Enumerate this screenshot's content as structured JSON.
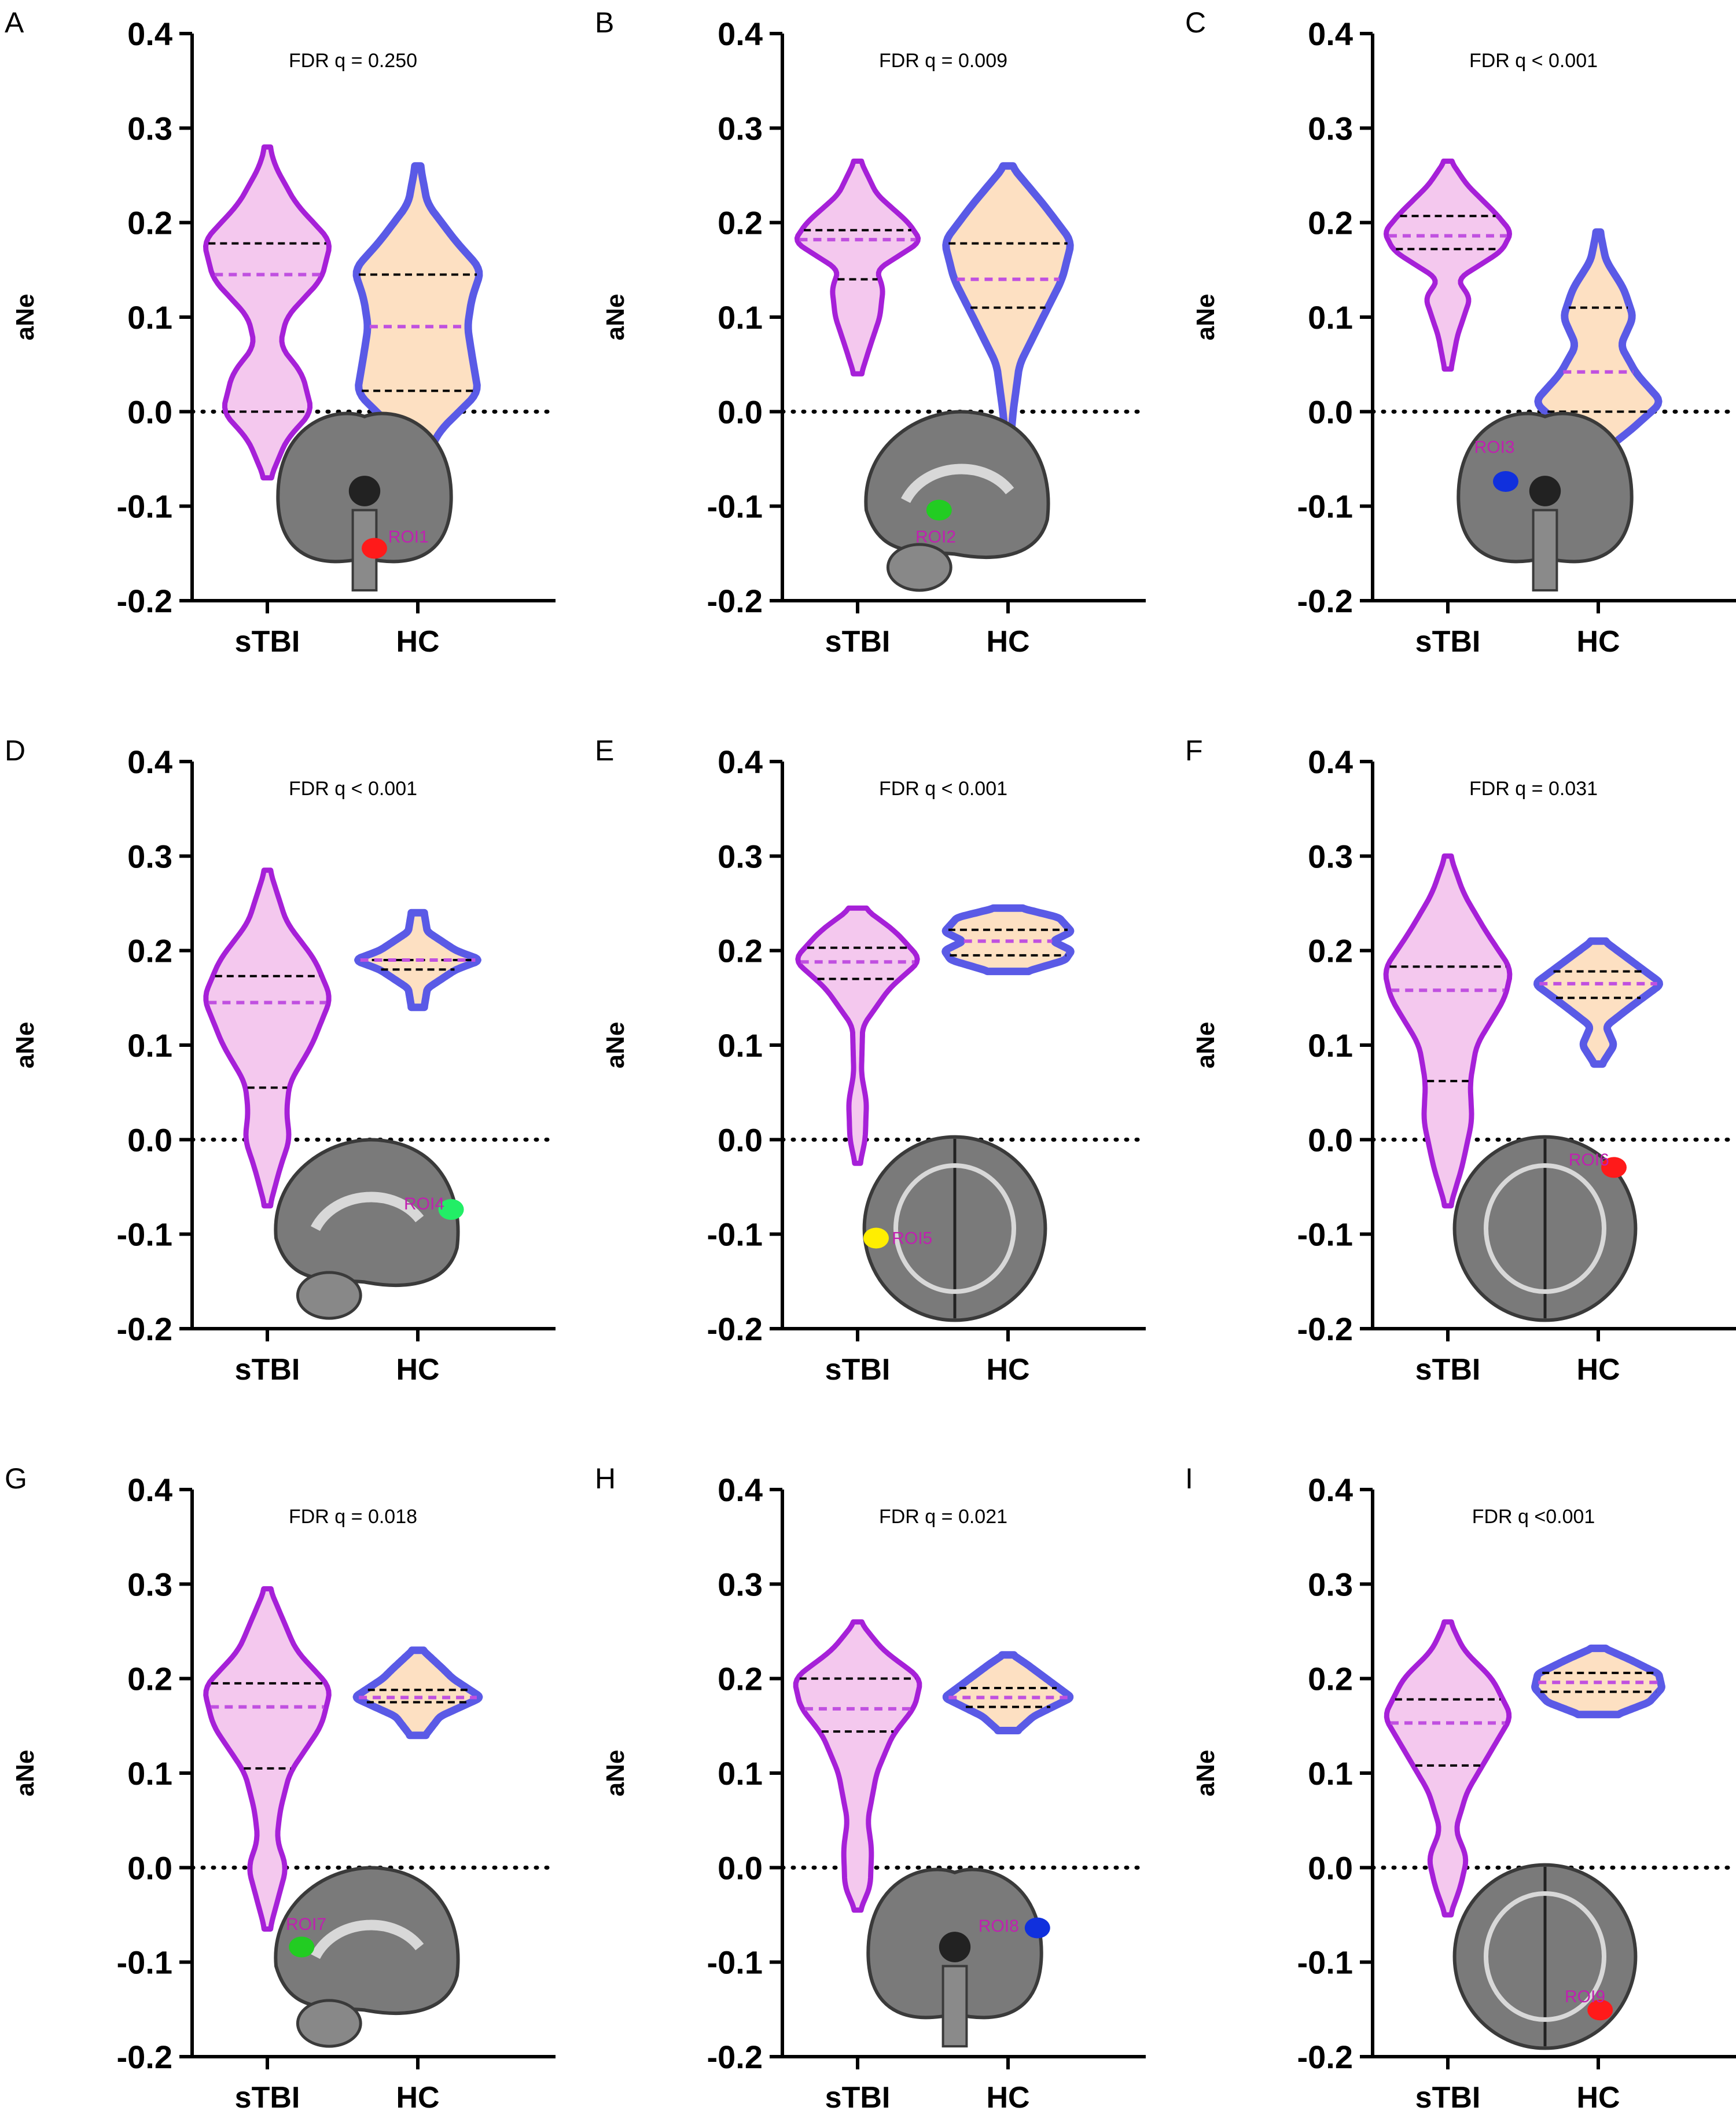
{
  "figure": {
    "y_axis_label": "aNe",
    "categories": [
      "sTBI",
      "HC"
    ]
  },
  "colors": {
    "stbi_outline": "#a620d8",
    "stbi_fill": "#f4c8ee",
    "hc_outline": "#5a5ae6",
    "hc_fill": "#fde0c2",
    "median_stbi": "#c050e0",
    "median_hc": "#c050e0",
    "quartile": "#000000",
    "roi_label": "#c020b0"
  },
  "chart_data": [
    {
      "panel": "A",
      "type": "violin",
      "fdr": "FDR q = 0.250",
      "ylabel": "aNe",
      "ylim": [
        -0.2,
        0.4
      ],
      "yticks": [
        "0.4",
        "0.3",
        "0.2",
        "0.1",
        "0.0",
        "-0.1",
        "-0.2"
      ],
      "reference_line": 0.0,
      "categories": [
        "sTBI",
        "HC"
      ],
      "series": [
        {
          "name": "sTBI",
          "min": -0.07,
          "max": 0.28,
          "q1": 0.0,
          "median": 0.145,
          "q3": 0.178,
          "density": [
            [
              -0.07,
              0.05
            ],
            [
              -0.03,
              0.3
            ],
            [
              0.0,
              0.7
            ],
            [
              0.04,
              0.55
            ],
            [
              0.07,
              0.2
            ],
            [
              0.1,
              0.3
            ],
            [
              0.14,
              0.85
            ],
            [
              0.18,
              1.0
            ],
            [
              0.22,
              0.45
            ],
            [
              0.26,
              0.12
            ],
            [
              0.28,
              0.04
            ]
          ]
        },
        {
          "name": "HC",
          "min": -0.06,
          "max": 0.26,
          "q1": 0.022,
          "median": 0.09,
          "q3": 0.145,
          "density": [
            [
              -0.06,
              0.04
            ],
            [
              -0.02,
              0.35
            ],
            [
              0.02,
              0.95
            ],
            [
              0.06,
              0.85
            ],
            [
              0.09,
              0.78
            ],
            [
              0.12,
              0.85
            ],
            [
              0.15,
              1.0
            ],
            [
              0.18,
              0.6
            ],
            [
              0.22,
              0.15
            ],
            [
              0.26,
              0.04
            ]
          ]
        }
      ],
      "brain": {
        "view": "coronal-cerebellum",
        "roi": "ROI1",
        "roi_color": "#ff1a1a"
      }
    },
    {
      "panel": "B",
      "type": "violin",
      "fdr": "FDR q = 0.009",
      "ylabel": "aNe",
      "ylim": [
        -0.2,
        0.4
      ],
      "yticks": [
        "0.4",
        "0.3",
        "0.2",
        "0.1",
        "0.0",
        "-0.1",
        "-0.2"
      ],
      "reference_line": 0.0,
      "categories": [
        "sTBI",
        "HC"
      ],
      "series": [
        {
          "name": "sTBI",
          "min": 0.04,
          "max": 0.265,
          "q1": 0.14,
          "median": 0.182,
          "q3": 0.192,
          "density": [
            [
              0.04,
              0.06
            ],
            [
              0.07,
              0.2
            ],
            [
              0.1,
              0.35
            ],
            [
              0.13,
              0.4
            ],
            [
              0.15,
              0.3
            ],
            [
              0.18,
              1.0
            ],
            [
              0.2,
              0.8
            ],
            [
              0.23,
              0.3
            ],
            [
              0.265,
              0.05
            ]
          ]
        },
        {
          "name": "HC",
          "min": -0.045,
          "max": 0.26,
          "q1": 0.11,
          "median": 0.14,
          "q3": 0.178,
          "density": [
            [
              -0.045,
              0.02
            ],
            [
              0.0,
              0.08
            ],
            [
              0.05,
              0.18
            ],
            [
              0.1,
              0.55
            ],
            [
              0.14,
              0.85
            ],
            [
              0.18,
              1.0
            ],
            [
              0.22,
              0.55
            ],
            [
              0.26,
              0.05
            ]
          ]
        }
      ],
      "brain": {
        "view": "sagittal",
        "roi": "ROI2",
        "roi_color": "#22cc22"
      }
    },
    {
      "panel": "C",
      "type": "violin",
      "fdr": "FDR q < 0.001",
      "ylabel": "aNe",
      "ylim": [
        -0.2,
        0.4
      ],
      "yticks": [
        "0.4",
        "0.3",
        "0.2",
        "0.1",
        "0.0",
        "-0.1",
        "-0.2"
      ],
      "reference_line": 0.0,
      "categories": [
        "sTBI",
        "HC"
      ],
      "series": [
        {
          "name": "sTBI",
          "min": 0.045,
          "max": 0.265,
          "q1": 0.172,
          "median": 0.186,
          "q3": 0.207,
          "density": [
            [
              0.045,
              0.05
            ],
            [
              0.08,
              0.15
            ],
            [
              0.12,
              0.35
            ],
            [
              0.14,
              0.15
            ],
            [
              0.17,
              0.85
            ],
            [
              0.19,
              1.0
            ],
            [
              0.21,
              0.75
            ],
            [
              0.24,
              0.3
            ],
            [
              0.265,
              0.05
            ]
          ]
        },
        {
          "name": "HC",
          "min": -0.045,
          "max": 0.19,
          "q1": 0.0,
          "median": 0.042,
          "q3": 0.11,
          "density": [
            [
              -0.045,
              0.03
            ],
            [
              -0.02,
              0.5
            ],
            [
              0.01,
              1.0
            ],
            [
              0.04,
              0.6
            ],
            [
              0.07,
              0.35
            ],
            [
              0.1,
              0.55
            ],
            [
              0.13,
              0.4
            ],
            [
              0.16,
              0.12
            ],
            [
              0.19,
              0.03
            ]
          ]
        }
      ],
      "brain": {
        "view": "coronal",
        "roi": "ROI3",
        "roi_color": "#1030dd"
      }
    },
    {
      "panel": "D",
      "type": "violin",
      "fdr": "FDR q < 0.001",
      "ylabel": "aNe",
      "ylim": [
        -0.2,
        0.4
      ],
      "yticks": [
        "0.4",
        "0.3",
        "0.2",
        "0.1",
        "0.0",
        "-0.1",
        "-0.2"
      ],
      "reference_line": 0.0,
      "categories": [
        "sTBI",
        "HC"
      ],
      "series": [
        {
          "name": "sTBI",
          "min": -0.07,
          "max": 0.285,
          "q1": 0.055,
          "median": 0.145,
          "q3": 0.173,
          "density": [
            [
              -0.07,
              0.04
            ],
            [
              -0.03,
              0.2
            ],
            [
              0.0,
              0.35
            ],
            [
              0.03,
              0.3
            ],
            [
              0.06,
              0.35
            ],
            [
              0.1,
              0.7
            ],
            [
              0.15,
              1.0
            ],
            [
              0.19,
              0.75
            ],
            [
              0.23,
              0.3
            ],
            [
              0.285,
              0.04
            ]
          ]
        },
        {
          "name": "HC",
          "min": 0.14,
          "max": 0.24,
          "q1": 0.18,
          "median": 0.19,
          "q3": 0.19,
          "density": [
            [
              0.14,
              0.1
            ],
            [
              0.16,
              0.15
            ],
            [
              0.18,
              0.6
            ],
            [
              0.19,
              1.0
            ],
            [
              0.2,
              0.6
            ],
            [
              0.22,
              0.15
            ],
            [
              0.24,
              0.1
            ]
          ]
        }
      ],
      "brain": {
        "view": "sagittal-mid",
        "roi": "ROI4",
        "roi_color": "#22ee66"
      }
    },
    {
      "panel": "E",
      "type": "violin",
      "fdr": "FDR q < 0.001",
      "ylabel": "aNe",
      "ylim": [
        -0.2,
        0.4
      ],
      "yticks": [
        "0.4",
        "0.3",
        "0.2",
        "0.1",
        "0.0",
        "-0.1",
        "-0.2"
      ],
      "reference_line": 0.0,
      "categories": [
        "sTBI",
        "HC"
      ],
      "series": [
        {
          "name": "sTBI",
          "min": -0.025,
          "max": 0.245,
          "q1": 0.17,
          "median": 0.188,
          "q3": 0.203,
          "density": [
            [
              -0.025,
              0.04
            ],
            [
              0.0,
              0.12
            ],
            [
              0.04,
              0.14
            ],
            [
              0.07,
              0.06
            ],
            [
              0.12,
              0.08
            ],
            [
              0.16,
              0.5
            ],
            [
              0.19,
              1.0
            ],
            [
              0.22,
              0.6
            ],
            [
              0.245,
              0.1
            ]
          ]
        },
        {
          "name": "HC",
          "min": 0.178,
          "max": 0.245,
          "q1": 0.195,
          "median": 0.21,
          "q3": 0.222,
          "density": [
            [
              0.178,
              0.3
            ],
            [
              0.19,
              0.9
            ],
            [
              0.2,
              1.0
            ],
            [
              0.21,
              0.7
            ],
            [
              0.22,
              1.0
            ],
            [
              0.235,
              0.8
            ],
            [
              0.245,
              0.2
            ]
          ]
        }
      ],
      "brain": {
        "view": "axial-top",
        "roi": "ROI5",
        "roi_color": "#ffee00"
      }
    },
    {
      "panel": "F",
      "type": "violin",
      "fdr": "FDR q = 0.031",
      "ylabel": "aNe",
      "ylim": [
        -0.2,
        0.4
      ],
      "yticks": [
        "0.4",
        "0.3",
        "0.2",
        "0.1",
        "0.0",
        "-0.1",
        "-0.2"
      ],
      "reference_line": 0.0,
      "categories": [
        "sTBI",
        "HC"
      ],
      "series": [
        {
          "name": "sTBI",
          "min": -0.07,
          "max": 0.3,
          "q1": 0.062,
          "median": 0.158,
          "q3": 0.183,
          "density": [
            [
              -0.07,
              0.04
            ],
            [
              -0.03,
              0.22
            ],
            [
              0.02,
              0.38
            ],
            [
              0.06,
              0.35
            ],
            [
              0.1,
              0.45
            ],
            [
              0.15,
              0.9
            ],
            [
              0.18,
              1.0
            ],
            [
              0.22,
              0.6
            ],
            [
              0.26,
              0.25
            ],
            [
              0.3,
              0.04
            ]
          ]
        },
        {
          "name": "HC",
          "min": 0.08,
          "max": 0.21,
          "q1": 0.15,
          "median": 0.165,
          "q3": 0.178,
          "density": [
            [
              0.08,
              0.06
            ],
            [
              0.1,
              0.25
            ],
            [
              0.12,
              0.12
            ],
            [
              0.14,
              0.5
            ],
            [
              0.165,
              1.0
            ],
            [
              0.185,
              0.6
            ],
            [
              0.21,
              0.1
            ]
          ]
        }
      ],
      "brain": {
        "view": "axial",
        "roi": "ROI6",
        "roi_color": "#ff1a1a"
      }
    },
    {
      "panel": "G",
      "type": "violin",
      "fdr": "FDR q = 0.018",
      "ylabel": "aNe",
      "ylim": [
        -0.2,
        0.4
      ],
      "yticks": [
        "0.4",
        "0.3",
        "0.2",
        "0.1",
        "0.0",
        "-0.1",
        "-0.2"
      ],
      "reference_line": 0.0,
      "categories": [
        "sTBI",
        "HC"
      ],
      "series": [
        {
          "name": "sTBI",
          "min": -0.065,
          "max": 0.295,
          "q1": 0.105,
          "median": 0.17,
          "q3": 0.195,
          "density": [
            [
              -0.065,
              0.04
            ],
            [
              -0.03,
              0.18
            ],
            [
              0.0,
              0.3
            ],
            [
              0.03,
              0.15
            ],
            [
              0.06,
              0.2
            ],
            [
              0.1,
              0.35
            ],
            [
              0.15,
              0.85
            ],
            [
              0.19,
              1.0
            ],
            [
              0.23,
              0.45
            ],
            [
              0.295,
              0.04
            ]
          ]
        },
        {
          "name": "HC",
          "min": 0.14,
          "max": 0.23,
          "q1": 0.175,
          "median": 0.18,
          "q3": 0.188,
          "density": [
            [
              0.14,
              0.12
            ],
            [
              0.16,
              0.35
            ],
            [
              0.18,
              1.0
            ],
            [
              0.2,
              0.55
            ],
            [
              0.21,
              0.4
            ],
            [
              0.23,
              0.08
            ]
          ]
        }
      ],
      "brain": {
        "view": "sagittal",
        "roi": "ROI7",
        "roi_color": "#22cc22"
      }
    },
    {
      "panel": "H",
      "type": "violin",
      "fdr": "FDR q = 0.021",
      "ylabel": "aNe",
      "ylim": [
        -0.2,
        0.4
      ],
      "yticks": [
        "0.4",
        "0.3",
        "0.2",
        "0.1",
        "0.0",
        "-0.1",
        "-0.2"
      ],
      "reference_line": 0.0,
      "categories": [
        "sTBI",
        "HC"
      ],
      "series": [
        {
          "name": "sTBI",
          "min": -0.045,
          "max": 0.26,
          "q1": 0.144,
          "median": 0.168,
          "q3": 0.2,
          "density": [
            [
              -0.045,
              0.04
            ],
            [
              -0.02,
              0.2
            ],
            [
              0.02,
              0.22
            ],
            [
              0.05,
              0.16
            ],
            [
              0.1,
              0.3
            ],
            [
              0.14,
              0.55
            ],
            [
              0.17,
              0.9
            ],
            [
              0.2,
              1.0
            ],
            [
              0.23,
              0.4
            ],
            [
              0.26,
              0.04
            ]
          ]
        },
        {
          "name": "HC",
          "min": 0.145,
          "max": 0.225,
          "q1": 0.17,
          "median": 0.18,
          "q3": 0.19,
          "density": [
            [
              0.145,
              0.15
            ],
            [
              0.16,
              0.4
            ],
            [
              0.18,
              1.0
            ],
            [
              0.2,
              0.6
            ],
            [
              0.215,
              0.3
            ],
            [
              0.225,
              0.08
            ]
          ]
        }
      ],
      "brain": {
        "view": "coronal",
        "roi": "ROI8",
        "roi_color": "#1030dd"
      }
    },
    {
      "panel": "I",
      "type": "violin",
      "fdr": "FDR q <0.001",
      "ylabel": "aNe",
      "ylim": [
        -0.2,
        0.4
      ],
      "yticks": [
        "0.4",
        "0.3",
        "0.2",
        "0.1",
        "0.0",
        "-0.1",
        "-0.2"
      ],
      "reference_line": 0.0,
      "categories": [
        "sTBI",
        "HC"
      ],
      "series": [
        {
          "name": "sTBI",
          "min": -0.05,
          "max": 0.26,
          "q1": 0.108,
          "median": 0.153,
          "q3": 0.178,
          "density": [
            [
              -0.05,
              0.04
            ],
            [
              -0.02,
              0.2
            ],
            [
              0.01,
              0.3
            ],
            [
              0.04,
              0.12
            ],
            [
              0.08,
              0.3
            ],
            [
              0.12,
              0.65
            ],
            [
              0.16,
              1.0
            ],
            [
              0.2,
              0.7
            ],
            [
              0.23,
              0.25
            ],
            [
              0.26,
              0.04
            ]
          ]
        },
        {
          "name": "HC",
          "min": 0.162,
          "max": 0.232,
          "q1": 0.186,
          "median": 0.196,
          "q3": 0.206,
          "density": [
            [
              0.162,
              0.3
            ],
            [
              0.175,
              0.8
            ],
            [
              0.19,
              1.0
            ],
            [
              0.205,
              0.95
            ],
            [
              0.22,
              0.5
            ],
            [
              0.232,
              0.1
            ]
          ]
        }
      ],
      "brain": {
        "view": "axial-top",
        "roi": "ROI9",
        "roi_color": "#ff1a1a"
      }
    }
  ]
}
